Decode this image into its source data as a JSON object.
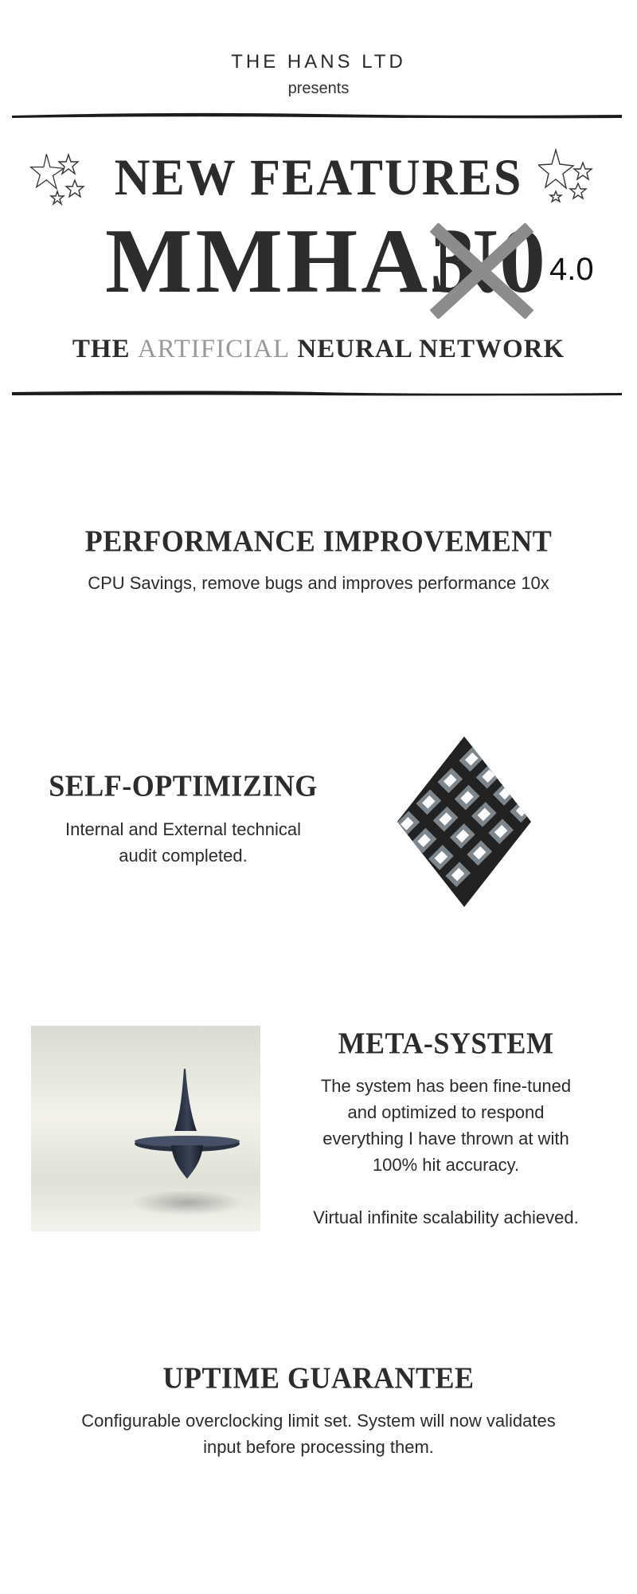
{
  "header": {
    "company": "THE HANS LTD",
    "presents": "presents",
    "title": "NEW FEATURES",
    "product_name": "MMHAN",
    "old_version": "3.0",
    "new_version": "4.0",
    "tagline_prefix": "THE",
    "tagline_muted": "ARTIFICIAL",
    "tagline_suffix": "NEURAL NETWORK"
  },
  "sections": {
    "performance": {
      "heading": "PERFORMANCE IMPROVEMENT",
      "body": "CPU Savings, remove bugs and improves performance 10x"
    },
    "self_optimizing": {
      "heading": "SELF-OPTIMIZING",
      "body_line1": "Internal and External technical",
      "body_line2": "audit completed."
    },
    "meta_system": {
      "heading": "META-SYSTEM",
      "body_line1": "The system has been fine-tuned",
      "body_line2": "and optimized to respond",
      "body_line3": "everything I have thrown at with",
      "body_line4": "100% hit accuracy.",
      "body_line5": "Virtual infinite scalability achieved."
    },
    "uptime": {
      "heading": "UPTIME GUARANTEE",
      "body_line1": "Configurable overclocking limit set. System will now validates",
      "body_line2": "input before processing them."
    }
  },
  "icons": {
    "stars_left": "stars-doodle-icon",
    "stars_right": "stars-doodle-icon",
    "knot": "endless-knot-icon",
    "photo": "spinning-top-image"
  },
  "colors": {
    "text": "#2c2c2c",
    "muted": "#9a9a9a",
    "cross": "#8c8c8c",
    "knot_fill": "#7d858d",
    "knot_stroke": "#222222"
  }
}
